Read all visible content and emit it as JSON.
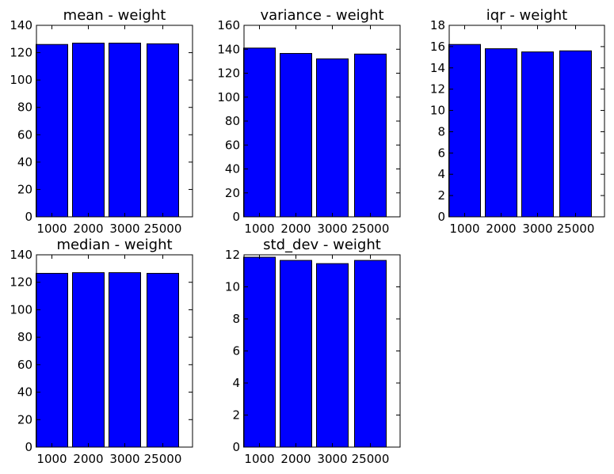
{
  "chart_data": [
    {
      "type": "bar",
      "title": "mean - weight",
      "categories": [
        "1000",
        "2000",
        "3000",
        "25000"
      ],
      "values": [
        126,
        127,
        127,
        126.5
      ],
      "ylim": [
        0,
        140
      ],
      "yticks": [
        0,
        20,
        40,
        60,
        80,
        100,
        120,
        140
      ],
      "bar_color": "#0000ff",
      "grid": false
    },
    {
      "type": "bar",
      "title": "variance - weight",
      "categories": [
        "1000",
        "2000",
        "3000",
        "25000"
      ],
      "values": [
        141,
        136.5,
        132,
        136
      ],
      "ylim": [
        0,
        160
      ],
      "yticks": [
        0,
        20,
        40,
        60,
        80,
        100,
        120,
        140,
        160
      ],
      "bar_color": "#0000ff",
      "grid": false
    },
    {
      "type": "bar",
      "title": "iqr - weight",
      "categories": [
        "1000",
        "2000",
        "3000",
        "25000"
      ],
      "values": [
        16.2,
        15.8,
        15.5,
        15.6
      ],
      "ylim": [
        0,
        18
      ],
      "yticks": [
        0,
        2,
        4,
        6,
        8,
        10,
        12,
        14,
        16,
        18
      ],
      "bar_color": "#0000ff",
      "grid": false
    },
    {
      "type": "bar",
      "title": "median - weight",
      "categories": [
        "1000",
        "2000",
        "3000",
        "25000"
      ],
      "values": [
        126.5,
        127,
        127,
        126.5
      ],
      "ylim": [
        0,
        140
      ],
      "yticks": [
        0,
        20,
        40,
        60,
        80,
        100,
        120,
        140
      ],
      "bar_color": "#0000ff",
      "grid": false
    },
    {
      "type": "bar",
      "title": "std_dev - weight",
      "categories": [
        "1000",
        "2000",
        "3000",
        "25000"
      ],
      "values": [
        11.85,
        11.65,
        11.45,
        11.65
      ],
      "ylim": [
        0,
        12
      ],
      "yticks": [
        0,
        2,
        4,
        6,
        8,
        10,
        12
      ],
      "bar_color": "#0000ff",
      "grid": false
    }
  ]
}
